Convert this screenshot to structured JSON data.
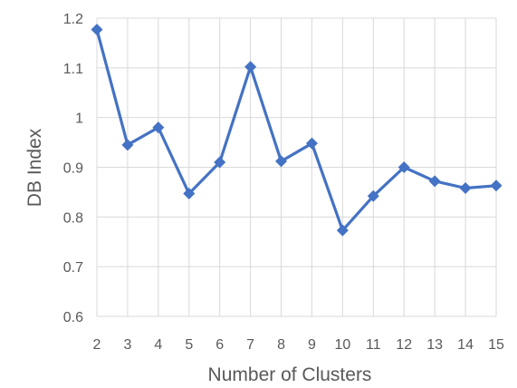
{
  "chart_data": {
    "type": "line",
    "title": "",
    "xlabel": "Number of Clusters",
    "ylabel": "DB Index",
    "categories": [
      "2",
      "3",
      "4",
      "5",
      "6",
      "7",
      "8",
      "9",
      "10",
      "11",
      "12",
      "13",
      "14",
      "15"
    ],
    "series": [
      {
        "values": [
          1.177,
          0.945,
          0.98,
          0.847,
          0.91,
          1.102,
          0.912,
          0.948,
          0.773,
          0.842,
          0.9,
          0.872,
          0.858,
          0.863
        ],
        "color": "#4472c4",
        "marker": "diamond"
      }
    ],
    "ylim": [
      0.6,
      1.2
    ],
    "yticks": [
      "0.6",
      "0.7",
      "0.8",
      "0.9",
      "1",
      "1.1",
      "1.2"
    ],
    "grid": true,
    "legend": "none"
  }
}
